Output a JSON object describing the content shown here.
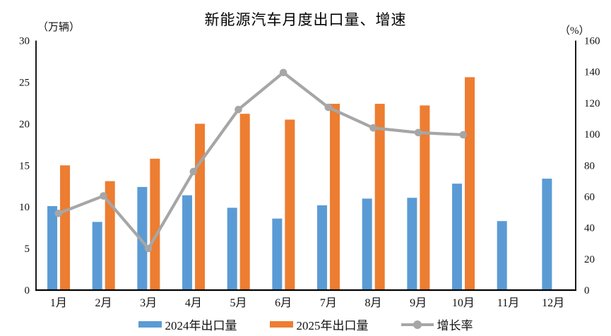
{
  "chart_data": {
    "type": "bar+line combo",
    "title": "新能源汽车月度出口量、增速",
    "left_axis": {
      "unit": "（万辆）",
      "min": 0,
      "max": 30,
      "step": 5
    },
    "right_axis": {
      "unit": "（%）",
      "min": 0,
      "max": 160,
      "step": 20
    },
    "categories": [
      "1月",
      "2月",
      "3月",
      "4月",
      "5月",
      "6月",
      "7月",
      "8月",
      "9月",
      "10月",
      "11月",
      "12月"
    ],
    "series": [
      {
        "name": "2024年出口量",
        "type": "bar",
        "axis": "left",
        "color": "#5B9BD5",
        "values": [
          10.1,
          8.2,
          12.4,
          11.4,
          9.9,
          8.6,
          10.2,
          11.0,
          11.1,
          12.8,
          8.3,
          13.4
        ]
      },
      {
        "name": "2025年出口量",
        "type": "bar",
        "axis": "left",
        "color": "#ED7D31",
        "values": [
          15.0,
          13.1,
          15.8,
          20.0,
          21.2,
          20.5,
          22.4,
          22.4,
          22.2,
          25.6,
          null,
          null
        ]
      },
      {
        "name": "增长率",
        "type": "line",
        "axis": "right",
        "color": "#A6A6A6",
        "values": [
          49.2,
          60.4,
          26.7,
          76.0,
          115.8,
          139.5,
          117.2,
          104.0,
          101.0,
          99.6,
          null,
          null
        ]
      }
    ],
    "layout_hints": {
      "legend_position": "bottom",
      "grid": "off",
      "axis_color": "#000000"
    }
  }
}
